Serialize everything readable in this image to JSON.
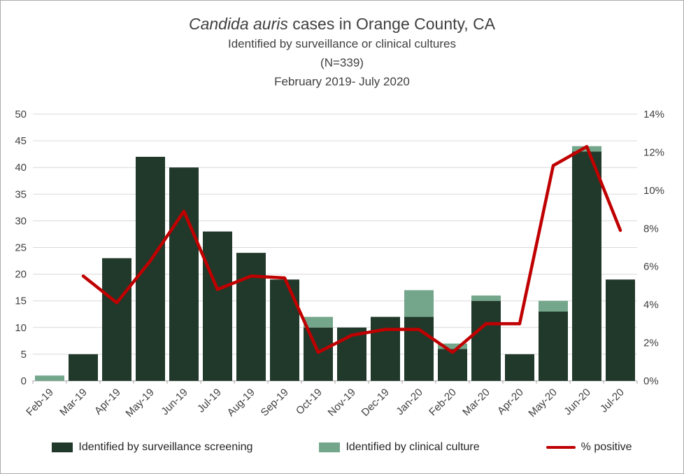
{
  "title": {
    "italic": "Candida auris",
    "rest": " cases in Orange County, CA"
  },
  "subtitle1": "Identified by surveillance or clinical cultures",
  "subtitle2": "(N=339)",
  "subtitle3": "February 2019- July 2020",
  "colors": {
    "surveillance_bar": "#21392a",
    "clinical_bar": "#74a68b",
    "positive_line": "#c00000",
    "gridline": "#d9d9d9",
    "axis_line": "#a6a6a6",
    "text": "#404040"
  },
  "legend": [
    {
      "label": "Identified by surveillance screening",
      "color": "#21392a",
      "type": "box"
    },
    {
      "label": "Identified by clinical culture",
      "color": "#74a68b",
      "type": "box"
    },
    {
      "label": "% positive",
      "color": "#c00000",
      "type": "line"
    }
  ],
  "chart_data": {
    "type": "bar",
    "title": "Candida auris cases in Orange County, CA",
    "subtitle": "Identified by surveillance or clinical cultures (N=339) February 2019- July 2020",
    "categories": [
      "Feb-19",
      "Mar-19",
      "Apr-19",
      "May-19",
      "Jun-19",
      "Jul-19",
      "Aug-19",
      "Sep-19",
      "Oct-19",
      "Nov-19",
      "Dec-19",
      "Jan-20",
      "Feb-20",
      "Mar-20",
      "Apr-20",
      "May-20",
      "Jun-20",
      "Jul-20"
    ],
    "series": [
      {
        "name": "Identified by surveillance screening",
        "type": "bar",
        "stacked": true,
        "color": "#21392a",
        "values": [
          0,
          5,
          23,
          42,
          40,
          28,
          24,
          19,
          10,
          10,
          12,
          12,
          6,
          15,
          5,
          13,
          43,
          19
        ]
      },
      {
        "name": "Identified by clinical culture",
        "type": "bar",
        "stacked": true,
        "color": "#74a68b",
        "values": [
          1,
          0,
          0,
          0,
          0,
          0,
          0,
          0,
          2,
          0,
          0,
          5,
          1,
          1,
          0,
          2,
          1,
          0
        ]
      },
      {
        "name": "% positive",
        "type": "line",
        "axis": "right",
        "color": "#c00000",
        "values": [
          null,
          5.5,
          4.1,
          6.3,
          8.9,
          4.8,
          5.5,
          5.4,
          1.5,
          2.4,
          2.7,
          2.7,
          1.5,
          3.0,
          3.0,
          11.3,
          12.3,
          7.9
        ]
      }
    ],
    "left_axis": {
      "min": 0,
      "max": 50,
      "step": 5
    },
    "right_axis": {
      "min": 0,
      "max": 14,
      "step": 2,
      "format": "percent"
    },
    "grid": "horizontal",
    "legend_position": "bottom"
  }
}
